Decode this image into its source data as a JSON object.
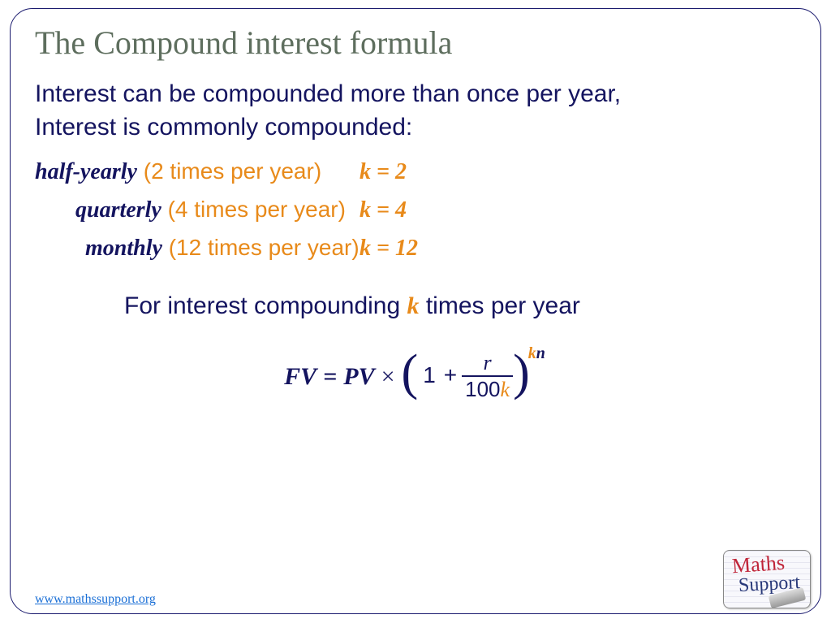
{
  "colors": {
    "title": "#5e6e5e",
    "body": "#14145f",
    "accent": "#e88a1a",
    "border": "#1a1a6e",
    "link": "#1a6fd6"
  },
  "title": "The Compound interest formula",
  "intro_line1": "Interest can be compounded more than once per year,",
  "intro_line2": "Interest is commonly compounded:",
  "rows": [
    {
      "term": "half-yearly",
      "freq": "(2 times per year)",
      "k": "k = 2"
    },
    {
      "term": "quarterly",
      "freq": "(4 times per year)",
      "k": "k = 4"
    },
    {
      "term": "monthly",
      "freq": "(12 times per year)",
      "k": "k = 12"
    }
  ],
  "compounding": {
    "pre": "For interest compounding ",
    "k": "k",
    "post": " times per year"
  },
  "formula": {
    "fv": "FV",
    "eq": "=",
    "pv": "PV",
    "times": "×",
    "lparen": "(",
    "one": "1",
    "plus": "+",
    "num_r": "r",
    "den_100": "100",
    "den_k": "k",
    "rparen": ")",
    "exp_k": "k",
    "exp_n": "n"
  },
  "footer_url": "www.mathssupport.org",
  "logo": {
    "line1": "Maths",
    "line2": "Support"
  }
}
